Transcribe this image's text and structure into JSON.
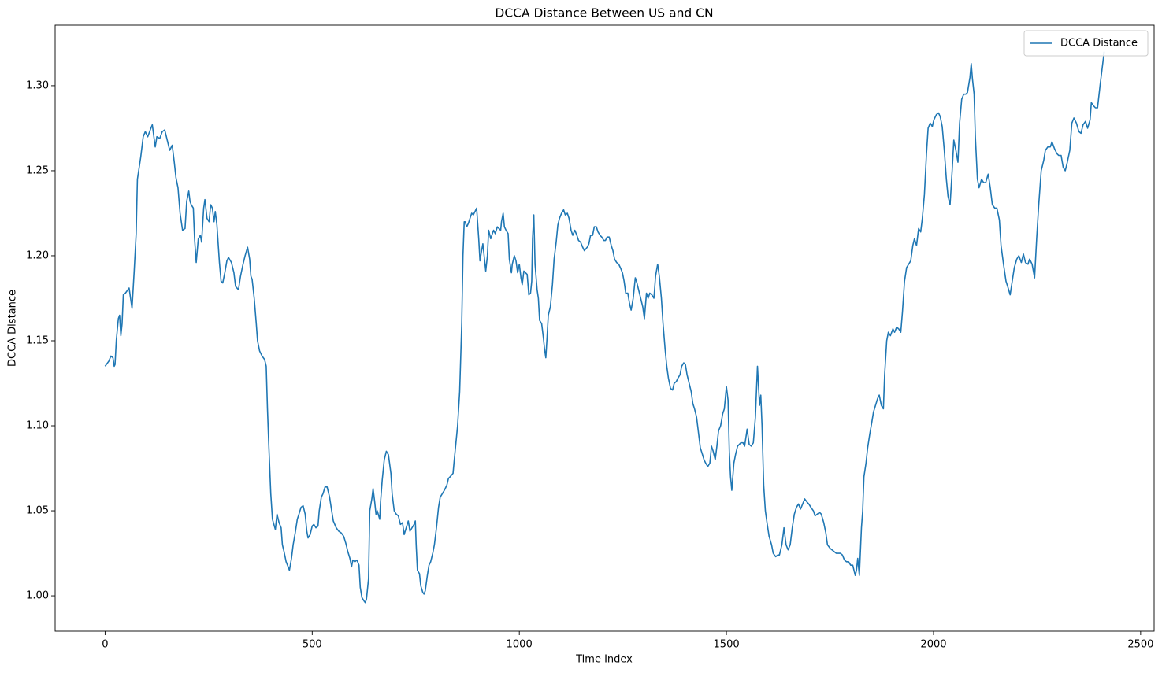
{
  "chart_data": {
    "type": "line",
    "title": "DCCA Distance Between US and CN",
    "xlabel": "Time Index",
    "ylabel": "DCCA Distance",
    "legend": "upper right",
    "grid": false,
    "xlim": [
      -120.6,
      2532.6
    ],
    "ylim": [
      0.9792,
      1.3356
    ],
    "xticks": [
      0,
      500,
      1000,
      1500,
      2000,
      2500
    ],
    "yticks": [
      {
        "value": 1,
        "label": "1.00"
      },
      1.05,
      {
        "value": 1.1,
        "label": "1.10"
      },
      1.15,
      {
        "value": 1.2,
        "label": "1.20"
      },
      1.25,
      {
        "value": 1.3,
        "label": "1.30"
      }
    ],
    "x": [
      0,
      9,
      14,
      19,
      22,
      24,
      27,
      32,
      35,
      38,
      41,
      44,
      49,
      55,
      58,
      65,
      70,
      75,
      78,
      86,
      92,
      97,
      103,
      109,
      114,
      121,
      125,
      132,
      138,
      144,
      150,
      156,
      162,
      167,
      171,
      176,
      181,
      187,
      193,
      197,
      202,
      205,
      208,
      213,
      216,
      220,
      225,
      230,
      233,
      238,
      241,
      246,
      251,
      255,
      259,
      263,
      266,
      270,
      276,
      280,
      284,
      289,
      294,
      298,
      305,
      311,
      315,
      322,
      327,
      333,
      338,
      344,
      349,
      352,
      355,
      360,
      365,
      368,
      373,
      379,
      385,
      389,
      392,
      395,
      400,
      404,
      411,
      415,
      420,
      425,
      428,
      432,
      437,
      442,
      445,
      450,
      454,
      459,
      464,
      468,
      473,
      478,
      483,
      487,
      490,
      495,
      500,
      504,
      509,
      514,
      517,
      522,
      526,
      531,
      536,
      542,
      547,
      551,
      558,
      564,
      570,
      576,
      581,
      586,
      591,
      595,
      598,
      603,
      608,
      613,
      616,
      620,
      625,
      628,
      631,
      636,
      639,
      644,
      647,
      651,
      654,
      657,
      663,
      665,
      669,
      674,
      679,
      684,
      690,
      693,
      698,
      703,
      708,
      713,
      718,
      722,
      727,
      732,
      736,
      741,
      746,
      749,
      751,
      754,
      759,
      762,
      767,
      770,
      773,
      778,
      782,
      786,
      791,
      795,
      800,
      805,
      809,
      814,
      819,
      825,
      829,
      833,
      840,
      843,
      847,
      851,
      856,
      861,
      864,
      867,
      869,
      873,
      877,
      881,
      885,
      889,
      893,
      897,
      902,
      905,
      909,
      912,
      916,
      919,
      923,
      926,
      931,
      935,
      938,
      942,
      947,
      951,
      955,
      957,
      961,
      964,
      968,
      973,
      976,
      981,
      983,
      988,
      992,
      996,
      1000,
      1004,
      1007,
      1011,
      1015,
      1019,
      1023,
      1027,
      1030,
      1032,
      1035,
      1038,
      1043,
      1046,
      1049,
      1054,
      1058,
      1061,
      1064,
      1067,
      1070,
      1075,
      1080,
      1084,
      1089,
      1093,
      1097,
      1102,
      1107,
      1111,
      1116,
      1120,
      1125,
      1129,
      1134,
      1139,
      1143,
      1148,
      1153,
      1157,
      1164,
      1168,
      1172,
      1177,
      1181,
      1186,
      1190,
      1195,
      1199,
      1204,
      1208,
      1212,
      1217,
      1222,
      1226,
      1230,
      1235,
      1240,
      1244,
      1249,
      1253,
      1257,
      1262,
      1266,
      1270,
      1275,
      1280,
      1284,
      1288,
      1293,
      1298,
      1302,
      1307,
      1311,
      1315,
      1320,
      1325,
      1329,
      1334,
      1338,
      1343,
      1347,
      1352,
      1356,
      1360,
      1365,
      1370,
      1374,
      1379,
      1383,
      1388,
      1392,
      1397,
      1401,
      1405,
      1410,
      1415,
      1419,
      1423,
      1428,
      1433,
      1437,
      1441,
      1446,
      1450,
      1455,
      1460,
      1464,
      1468,
      1473,
      1477,
      1481,
      1486,
      1491,
      1495,
      1500,
      1504,
      1507,
      1510,
      1513,
      1518,
      1522,
      1527,
      1535,
      1540,
      1544,
      1550,
      1555,
      1560,
      1565,
      1570,
      1575,
      1580,
      1583,
      1586,
      1590,
      1594,
      1598,
      1603,
      1609,
      1613,
      1619,
      1624,
      1628,
      1634,
      1639,
      1644,
      1649,
      1654,
      1659,
      1664,
      1669,
      1674,
      1679,
      1684,
      1689,
      1695,
      1699,
      1704,
      1710,
      1714,
      1719,
      1725,
      1729,
      1735,
      1740,
      1744,
      1750,
      1755,
      1760,
      1765,
      1770,
      1775,
      1780,
      1785,
      1790,
      1795,
      1800,
      1805,
      1811,
      1814,
      1817,
      1821,
      1826,
      1829,
      1832,
      1837,
      1841,
      1846,
      1851,
      1855,
      1860,
      1865,
      1869,
      1874,
      1879,
      1882,
      1887,
      1891,
      1896,
      1902,
      1906,
      1911,
      1916,
      1921,
      1925,
      1930,
      1935,
      1940,
      1945,
      1950,
      1954,
      1959,
      1964,
      1969,
      1973,
      1978,
      1983,
      1987,
      1992,
      1997,
      2001,
      2007,
      2012,
      2016,
      2021,
      2026,
      2031,
      2035,
      2040,
      2045,
      2049,
      2054,
      2059,
      2063,
      2068,
      2073,
      2078,
      2082,
      2088,
      2091,
      2094,
      2098,
      2101,
      2106,
      2110,
      2116,
      2121,
      2126,
      2132,
      2137,
      2142,
      2148,
      2153,
      2159,
      2163,
      2169,
      2175,
      2179,
      2185,
      2190,
      2195,
      2201,
      2206,
      2212,
      2217,
      2222,
      2228,
      2232,
      2238,
      2244,
      2249,
      2254,
      2260,
      2266,
      2270,
      2276,
      2282,
      2286,
      2292,
      2298,
      2302,
      2308,
      2313,
      2318,
      2323,
      2329,
      2334,
      2339,
      2345,
      2351,
      2356,
      2361,
      2367,
      2372,
      2378,
      2381,
      2387,
      2391,
      2396,
      2402,
      2407,
      2412
    ],
    "series": [
      {
        "name": "DCCA Distance",
        "color": "#1f77b4",
        "values": [
          1.135,
          1.138,
          1.141,
          1.14,
          1.135,
          1.136,
          1.15,
          1.163,
          1.165,
          1.153,
          1.16,
          1.177,
          1.178,
          1.18,
          1.181,
          1.169,
          1.19,
          1.213,
          1.245,
          1.258,
          1.27,
          1.273,
          1.27,
          1.274,
          1.277,
          1.264,
          1.27,
          1.269,
          1.273,
          1.274,
          1.268,
          1.262,
          1.265,
          1.255,
          1.246,
          1.24,
          1.225,
          1.215,
          1.216,
          1.232,
          1.238,
          1.232,
          1.23,
          1.228,
          1.21,
          1.196,
          1.21,
          1.212,
          1.208,
          1.228,
          1.233,
          1.222,
          1.22,
          1.23,
          1.228,
          1.22,
          1.226,
          1.218,
          1.196,
          1.185,
          1.184,
          1.19,
          1.197,
          1.199,
          1.196,
          1.19,
          1.182,
          1.18,
          1.188,
          1.195,
          1.2,
          1.205,
          1.198,
          1.188,
          1.186,
          1.175,
          1.16,
          1.15,
          1.144,
          1.141,
          1.139,
          1.135,
          1.11,
          1.09,
          1.06,
          1.045,
          1.039,
          1.048,
          1.043,
          1.04,
          1.03,
          1.026,
          1.02,
          1.017,
          1.015,
          1.022,
          1.03,
          1.037,
          1.045,
          1.048,
          1.052,
          1.053,
          1.048,
          1.038,
          1.034,
          1.036,
          1.041,
          1.042,
          1.04,
          1.041,
          1.05,
          1.058,
          1.06,
          1.064,
          1.064,
          1.058,
          1.05,
          1.044,
          1.04,
          1.038,
          1.037,
          1.035,
          1.031,
          1.026,
          1.022,
          1.017,
          1.021,
          1.02,
          1.021,
          1.018,
          1.005,
          0.999,
          0.997,
          0.996,
          0.998,
          1.01,
          1.05,
          1.057,
          1.063,
          1.055,
          1.048,
          1.05,
          1.045,
          1.055,
          1.068,
          1.08,
          1.085,
          1.083,
          1.072,
          1.06,
          1.05,
          1.048,
          1.047,
          1.042,
          1.043,
          1.036,
          1.04,
          1.044,
          1.038,
          1.04,
          1.042,
          1.044,
          1.03,
          1.015,
          1.013,
          1.006,
          1.002,
          1.001,
          1.003,
          1.012,
          1.018,
          1.02,
          1.025,
          1.03,
          1.04,
          1.052,
          1.058,
          1.06,
          1.062,
          1.065,
          1.069,
          1.07,
          1.072,
          1.08,
          1.09,
          1.1,
          1.12,
          1.16,
          1.2,
          1.22,
          1.22,
          1.217,
          1.219,
          1.222,
          1.225,
          1.224,
          1.226,
          1.228,
          1.21,
          1.197,
          1.203,
          1.207,
          1.198,
          1.191,
          1.2,
          1.215,
          1.21,
          1.213,
          1.215,
          1.213,
          1.217,
          1.216,
          1.215,
          1.22,
          1.225,
          1.217,
          1.215,
          1.213,
          1.198,
          1.19,
          1.195,
          1.2,
          1.197,
          1.19,
          1.195,
          1.187,
          1.183,
          1.191,
          1.19,
          1.189,
          1.177,
          1.178,
          1.185,
          1.21,
          1.224,
          1.195,
          1.18,
          1.175,
          1.162,
          1.16,
          1.152,
          1.145,
          1.14,
          1.152,
          1.165,
          1.17,
          1.183,
          1.198,
          1.208,
          1.218,
          1.222,
          1.225,
          1.227,
          1.224,
          1.225,
          1.222,
          1.215,
          1.212,
          1.215,
          1.212,
          1.209,
          1.208,
          1.205,
          1.203,
          1.205,
          1.207,
          1.212,
          1.212,
          1.217,
          1.217,
          1.214,
          1.212,
          1.211,
          1.209,
          1.209,
          1.211,
          1.211,
          1.206,
          1.203,
          1.198,
          1.196,
          1.195,
          1.193,
          1.19,
          1.185,
          1.178,
          1.178,
          1.172,
          1.168,
          1.175,
          1.187,
          1.184,
          1.18,
          1.175,
          1.17,
          1.163,
          1.178,
          1.175,
          1.178,
          1.177,
          1.175,
          1.188,
          1.195,
          1.188,
          1.175,
          1.16,
          1.145,
          1.135,
          1.128,
          1.122,
          1.121,
          1.125,
          1.126,
          1.128,
          1.13,
          1.135,
          1.137,
          1.136,
          1.13,
          1.125,
          1.12,
          1.113,
          1.11,
          1.105,
          1.095,
          1.087,
          1.084,
          1.08,
          1.078,
          1.076,
          1.078,
          1.088,
          1.085,
          1.08,
          1.088,
          1.097,
          1.1,
          1.107,
          1.11,
          1.123,
          1.115,
          1.085,
          1.07,
          1.062,
          1.078,
          1.083,
          1.088,
          1.09,
          1.09,
          1.088,
          1.098,
          1.089,
          1.088,
          1.09,
          1.105,
          1.135,
          1.112,
          1.118,
          1.1,
          1.065,
          1.05,
          1.043,
          1.035,
          1.03,
          1.025,
          1.023,
          1.024,
          1.024,
          1.03,
          1.04,
          1.03,
          1.027,
          1.03,
          1.04,
          1.048,
          1.052,
          1.054,
          1.051,
          1.054,
          1.057,
          1.055,
          1.054,
          1.052,
          1.05,
          1.047,
          1.048,
          1.049,
          1.048,
          1.043,
          1.037,
          1.03,
          1.028,
          1.027,
          1.026,
          1.025,
          1.025,
          1.025,
          1.024,
          1.021,
          1.02,
          1.02,
          1.018,
          1.018,
          1.012,
          1.015,
          1.022,
          1.012,
          1.04,
          1.05,
          1.07,
          1.078,
          1.087,
          1.095,
          1.102,
          1.108,
          1.112,
          1.116,
          1.118,
          1.112,
          1.11,
          1.13,
          1.15,
          1.155,
          1.153,
          1.157,
          1.155,
          1.158,
          1.157,
          1.155,
          1.167,
          1.185,
          1.193,
          1.195,
          1.197,
          1.206,
          1.21,
          1.206,
          1.216,
          1.214,
          1.222,
          1.236,
          1.26,
          1.275,
          1.278,
          1.276,
          1.28,
          1.283,
          1.284,
          1.282,
          1.276,
          1.262,
          1.245,
          1.235,
          1.23,
          1.25,
          1.268,
          1.262,
          1.255,
          1.278,
          1.292,
          1.295,
          1.295,
          1.296,
          1.305,
          1.313,
          1.304,
          1.295,
          1.27,
          1.245,
          1.24,
          1.245,
          1.243,
          1.243,
          1.248,
          1.24,
          1.23,
          1.228,
          1.228,
          1.221,
          1.206,
          1.195,
          1.185,
          1.182,
          1.177,
          1.185,
          1.193,
          1.198,
          1.2,
          1.196,
          1.201,
          1.196,
          1.195,
          1.198,
          1.195,
          1.187,
          1.21,
          1.23,
          1.25,
          1.256,
          1.262,
          1.264,
          1.264,
          1.267,
          1.263,
          1.26,
          1.259,
          1.259,
          1.252,
          1.25,
          1.255,
          1.262,
          1.278,
          1.281,
          1.278,
          1.273,
          1.272,
          1.277,
          1.279,
          1.275,
          1.28,
          1.29,
          1.288,
          1.287,
          1.287,
          1.3,
          1.31,
          1.32
        ]
      }
    ]
  }
}
